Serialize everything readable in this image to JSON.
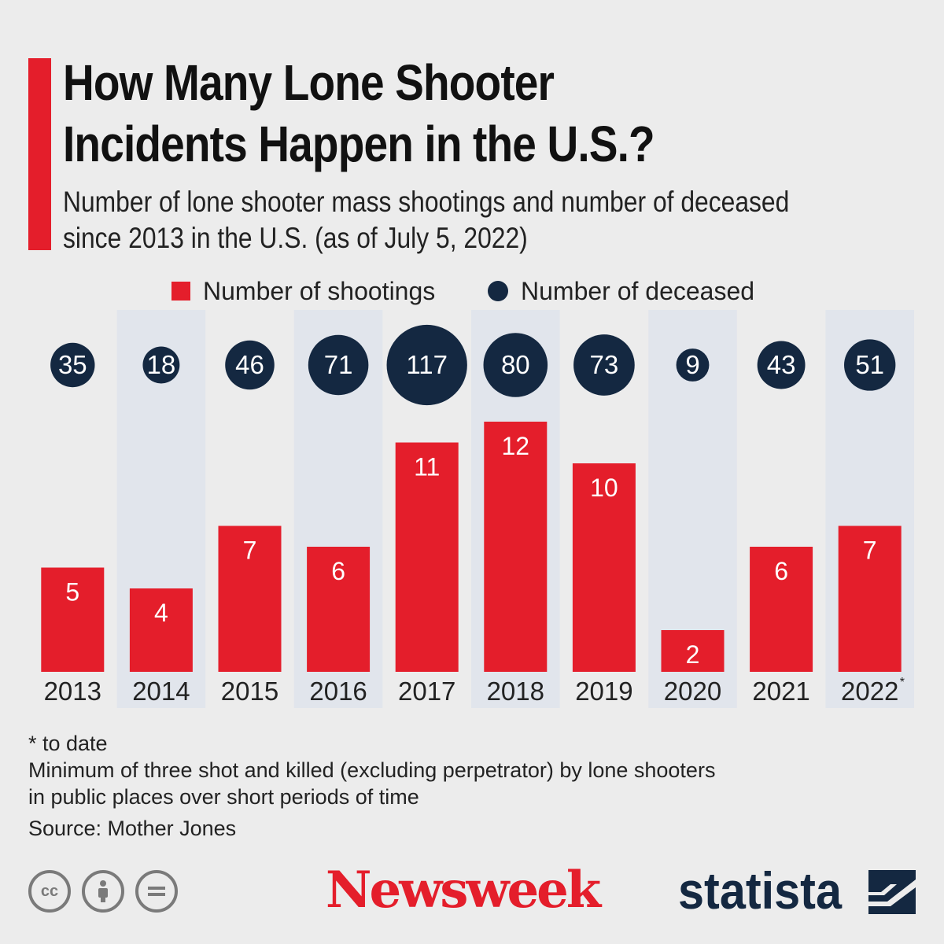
{
  "title_lines": [
    "How Many Lone Shooter",
    "Incidents Happen in the U.S.?"
  ],
  "subtitle_lines": [
    "Number of lone shooter mass shootings and number of deceased",
    "since 2013 in the U.S. (as of July 5, 2022)"
  ],
  "chart_data": {
    "type": "bar",
    "categories": [
      "2013",
      "2014",
      "2015",
      "2016",
      "2017",
      "2018",
      "2019",
      "2020",
      "2021",
      "2022"
    ],
    "category_footnote": [
      "",
      "",
      "",
      "",
      "",
      "",
      "",
      "",
      "",
      "*"
    ],
    "series": [
      {
        "name": "Number of shootings",
        "type": "bar",
        "values": [
          5,
          4,
          7,
          6,
          11,
          12,
          10,
          2,
          6,
          7
        ]
      },
      {
        "name": "Number of deceased",
        "type": "bubble",
        "values": [
          35,
          18,
          46,
          71,
          117,
          80,
          73,
          9,
          43,
          51
        ]
      }
    ],
    "legend": [
      "Number of shootings",
      "Number of deceased"
    ],
    "ylim": [
      0,
      12
    ],
    "colors": {
      "bar": "#e41e2b",
      "bubble": "#142841",
      "band": "#e1e5ec"
    }
  },
  "footnotes": {
    "asterisk": "* to date",
    "definition_lines": [
      "Minimum of three shot and killed (excluding perpetrator) by lone shooters",
      "in public places over short periods of time"
    ],
    "source": "Source: Mother Jones"
  },
  "license_icons": [
    "cc-icon",
    "person-icon",
    "equals-icon"
  ],
  "brands": {
    "newsweek": "Newsweek",
    "statista": "statista"
  }
}
